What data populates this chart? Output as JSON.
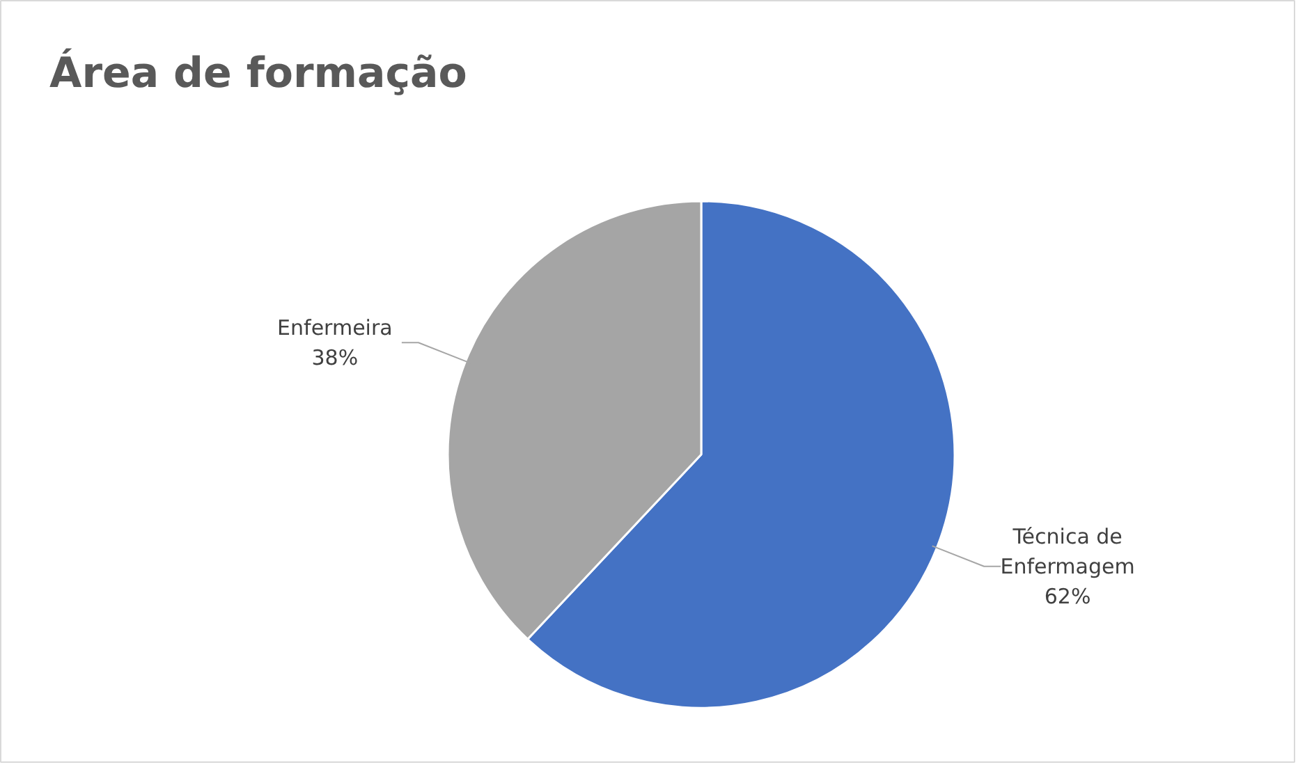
{
  "chart_data": {
    "type": "pie",
    "title": "Área de formação",
    "categories": [
      "Técnica de Enfermagem",
      "Enfermeira"
    ],
    "values": [
      62,
      38
    ],
    "colors": [
      "#4472c4",
      "#a5a5a5"
    ],
    "value_labels": [
      "62%",
      "38%"
    ]
  }
}
